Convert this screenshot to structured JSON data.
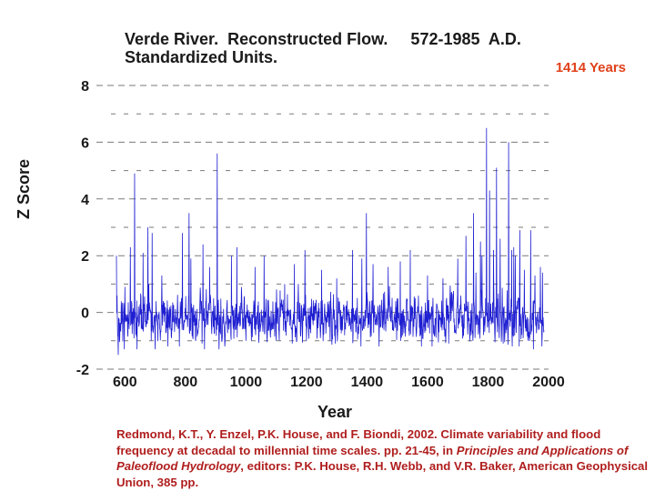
{
  "colors": {
    "series": "#1f1fd2",
    "annotation": "#e0401a",
    "citation": "#b01e1e",
    "text": "#1a1a1a",
    "grid": "#7a7a7a"
  },
  "chart_data": {
    "type": "line",
    "title_line1": "Verde River.  Reconstructed Flow.     572-1985  A.D.",
    "title_line2": "Standardized Units.",
    "annotation": "1414 Years",
    "xlabel": "Year",
    "ylabel": "Z Score",
    "xlim": [
      572,
      2000
    ],
    "ylim": [
      -2,
      8
    ],
    "x_ticks": [
      600,
      800,
      1000,
      1200,
      1400,
      1600,
      1800,
      2000
    ],
    "y_ticks": [
      8,
      6,
      4,
      2,
      0,
      -2
    ],
    "grid": "horizontal dashed",
    "series": [
      {
        "name": "Reconstructed flow (Z score)",
        "start_year": 572,
        "end_year": 1985,
        "baseline": -0.2,
        "spread": 0.55,
        "seed": 1414,
        "peaks": [
          [
            572,
            2.0
          ],
          [
            578,
            1.6
          ],
          [
            600,
            0.9
          ],
          [
            618,
            2.3
          ],
          [
            632,
            4.9
          ],
          [
            660,
            2.1
          ],
          [
            676,
            3.0
          ],
          [
            690,
            2.8
          ],
          [
            700,
            1.8
          ],
          [
            722,
            1.3
          ],
          [
            780,
            2.0
          ],
          [
            790,
            2.8
          ],
          [
            812,
            3.5
          ],
          [
            818,
            1.9
          ],
          [
            858,
            2.4
          ],
          [
            880,
            1.6
          ],
          [
            905,
            5.6
          ],
          [
            952,
            2.0
          ],
          [
            970,
            2.3
          ],
          [
            1030,
            1.6
          ],
          [
            1060,
            2.0
          ],
          [
            1100,
            1.9
          ],
          [
            1128,
            1.0
          ],
          [
            1160,
            1.7
          ],
          [
            1195,
            2.2
          ],
          [
            1250,
            1.5
          ],
          [
            1300,
            1.2
          ],
          [
            1352,
            2.2
          ],
          [
            1383,
            1.9
          ],
          [
            1398,
            3.5
          ],
          [
            1420,
            1.7
          ],
          [
            1470,
            1.6
          ],
          [
            1510,
            1.8
          ],
          [
            1543,
            2.2
          ],
          [
            1600,
            1.3
          ],
          [
            1651,
            1.2
          ],
          [
            1700,
            1.9
          ],
          [
            1727,
            2.7
          ],
          [
            1752,
            3.5
          ],
          [
            1760,
            1.4
          ],
          [
            1775,
            2.5
          ],
          [
            1780,
            2.0
          ],
          [
            1795,
            6.5
          ],
          [
            1805,
            4.3
          ],
          [
            1818,
            2.2
          ],
          [
            1828,
            5.1
          ],
          [
            1840,
            2.6
          ],
          [
            1868,
            6.0
          ],
          [
            1878,
            2.2
          ],
          [
            1885,
            2.3
          ],
          [
            1890,
            2.0
          ],
          [
            1905,
            2.9
          ],
          [
            1920,
            1.5
          ],
          [
            1941,
            2.9
          ],
          [
            1955,
            1.3
          ],
          [
            1973,
            1.6
          ],
          [
            1980,
            1.4
          ]
        ],
        "troughs": [
          [
            578,
            -1.5
          ],
          [
            598,
            -1.3
          ],
          [
            640,
            -1.3
          ],
          [
            700,
            -1.3
          ],
          [
            742,
            -1.2
          ],
          [
            780,
            -1.2
          ],
          [
            855,
            -1.1
          ],
          [
            863,
            -1.3
          ],
          [
            911,
            -1.3
          ],
          [
            930,
            -1.2
          ],
          [
            1000,
            -1.0
          ],
          [
            1100,
            -1.0
          ],
          [
            1153,
            -1.1
          ],
          [
            1278,
            -1.0
          ],
          [
            1295,
            -1.1
          ],
          [
            1380,
            -1.2
          ],
          [
            1440,
            -1.2
          ],
          [
            1580,
            -1.2
          ],
          [
            1615,
            -1.2
          ],
          [
            1670,
            -1.1
          ],
          [
            1750,
            -1.0
          ],
          [
            1850,
            -1.1
          ],
          [
            1880,
            -1.2
          ],
          [
            1903,
            -1.2
          ],
          [
            1950,
            -1.3
          ],
          [
            1978,
            -1.2
          ]
        ]
      }
    ]
  },
  "citation": {
    "part1": "Redmond, K.T., Y. Enzel, P.K. House, and F. Biondi, 2002. Climate variability and flood frequency at decadal to millennial time scales. pp. 21-45, in ",
    "title1": "Principles and Applications of Paleoflood Hydrology",
    "part2": ", editors: P.K. House, R.H. Webb, and V.R. Baker, American Geophysical Union, 385 pp."
  }
}
